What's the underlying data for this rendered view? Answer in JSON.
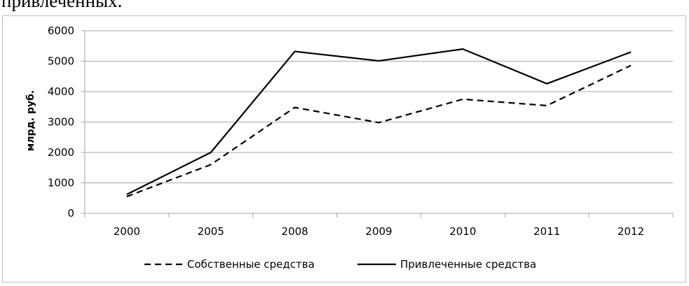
{
  "page": {
    "top_text": "привлеченных."
  },
  "chart_data": {
    "type": "line",
    "categories": [
      "2000",
      "2005",
      "2008",
      "2009",
      "2010",
      "2011",
      "2012"
    ],
    "series": [
      {
        "name": "Собственные средства",
        "values": [
          550,
          1600,
          3480,
          2980,
          3750,
          3540,
          4860
        ],
        "style": "dashed",
        "color": "#000000"
      },
      {
        "name": "Привлеченные средства",
        "values": [
          620,
          2000,
          5320,
          5010,
          5400,
          4260,
          5300
        ],
        "style": "solid",
        "color": "#000000"
      }
    ],
    "title": "",
    "xlabel": "",
    "ylabel": "млрд. руб.",
    "ylim": [
      0,
      6000
    ],
    "yticks": [
      "0",
      "1000",
      "2000",
      "3000",
      "4000",
      "5000",
      "6000"
    ],
    "grid": true,
    "legend_position": "bottom",
    "colors": {
      "grid": "#a6a6a6",
      "axis": "#a6a6a6",
      "lines": "#000000"
    }
  }
}
